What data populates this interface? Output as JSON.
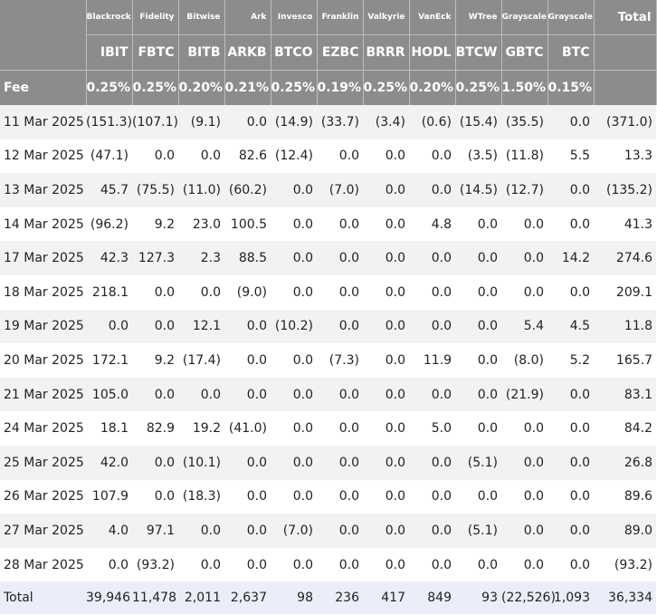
{
  "table": {
    "issuers": [
      "Blackrock",
      "Fidelity",
      "Bitwise",
      "Ark",
      "Invesco",
      "Franklin",
      "Valkyrie",
      "VanEck",
      "WTree",
      "Grayscale",
      "Grayscale"
    ],
    "total_header": "Total",
    "tickers": [
      "IBIT",
      "FBTC",
      "BITB",
      "ARKB",
      "BTCO",
      "EZBC",
      "BRRR",
      "HODL",
      "BTCW",
      "GBTC",
      "BTC"
    ],
    "fee_label": "Fee",
    "fees": [
      "0.25%",
      "0.25%",
      "0.20%",
      "0.21%",
      "0.25%",
      "0.19%",
      "0.25%",
      "0.20%",
      "0.25%",
      "1.50%",
      "0.15%"
    ],
    "rows": [
      {
        "date": "11 Mar 2025",
        "values": [
          "(151.3)",
          "(107.1)",
          "(9.1)",
          "0.0",
          "(14.9)",
          "(33.7)",
          "(3.4)",
          "(0.6)",
          "(15.4)",
          "(35.5)",
          "0.0"
        ],
        "total": "(371.0)"
      },
      {
        "date": "12 Mar 2025",
        "values": [
          "(47.1)",
          "0.0",
          "0.0",
          "82.6",
          "(12.4)",
          "0.0",
          "0.0",
          "0.0",
          "(3.5)",
          "(11.8)",
          "5.5"
        ],
        "total": "13.3"
      },
      {
        "date": "13 Mar 2025",
        "values": [
          "45.7",
          "(75.5)",
          "(11.0)",
          "(60.2)",
          "0.0",
          "(7.0)",
          "0.0",
          "0.0",
          "(14.5)",
          "(12.7)",
          "0.0"
        ],
        "total": "(135.2)"
      },
      {
        "date": "14 Mar 2025",
        "values": [
          "(96.2)",
          "9.2",
          "23.0",
          "100.5",
          "0.0",
          "0.0",
          "0.0",
          "4.8",
          "0.0",
          "0.0",
          "0.0"
        ],
        "total": "41.3"
      },
      {
        "date": "17 Mar 2025",
        "values": [
          "42.3",
          "127.3",
          "2.3",
          "88.5",
          "0.0",
          "0.0",
          "0.0",
          "0.0",
          "0.0",
          "0.0",
          "14.2"
        ],
        "total": "274.6"
      },
      {
        "date": "18 Mar 2025",
        "values": [
          "218.1",
          "0.0",
          "0.0",
          "(9.0)",
          "0.0",
          "0.0",
          "0.0",
          "0.0",
          "0.0",
          "0.0",
          "0.0"
        ],
        "total": "209.1"
      },
      {
        "date": "19 Mar 2025",
        "values": [
          "0.0",
          "0.0",
          "12.1",
          "0.0",
          "(10.2)",
          "0.0",
          "0.0",
          "0.0",
          "0.0",
          "5.4",
          "4.5"
        ],
        "total": "11.8"
      },
      {
        "date": "20 Mar 2025",
        "values": [
          "172.1",
          "9.2",
          "(17.4)",
          "0.0",
          "0.0",
          "(7.3)",
          "0.0",
          "11.9",
          "0.0",
          "(8.0)",
          "5.2"
        ],
        "total": "165.7"
      },
      {
        "date": "21 Mar 2025",
        "values": [
          "105.0",
          "0.0",
          "0.0",
          "0.0",
          "0.0",
          "0.0",
          "0.0",
          "0.0",
          "0.0",
          "(21.9)",
          "0.0"
        ],
        "total": "83.1"
      },
      {
        "date": "24 Mar 2025",
        "values": [
          "18.1",
          "82.9",
          "19.2",
          "(41.0)",
          "0.0",
          "0.0",
          "0.0",
          "5.0",
          "0.0",
          "0.0",
          "0.0"
        ],
        "total": "84.2"
      },
      {
        "date": "25 Mar 2025",
        "values": [
          "42.0",
          "0.0",
          "(10.1)",
          "0.0",
          "0.0",
          "0.0",
          "0.0",
          "0.0",
          "(5.1)",
          "0.0",
          "0.0"
        ],
        "total": "26.8"
      },
      {
        "date": "26 Mar 2025",
        "values": [
          "107.9",
          "0.0",
          "(18.3)",
          "0.0",
          "0.0",
          "0.0",
          "0.0",
          "0.0",
          "0.0",
          "0.0",
          "0.0"
        ],
        "total": "89.6"
      },
      {
        "date": "27 Mar 2025",
        "values": [
          "4.0",
          "97.1",
          "0.0",
          "0.0",
          "(7.0)",
          "0.0",
          "0.0",
          "0.0",
          "(5.1)",
          "0.0",
          "0.0"
        ],
        "total": "89.0"
      },
      {
        "date": "28 Mar 2025",
        "values": [
          "0.0",
          "(93.2)",
          "0.0",
          "0.0",
          "0.0",
          "0.0",
          "0.0",
          "0.0",
          "0.0",
          "0.0",
          "0.0"
        ],
        "total": "(93.2)"
      }
    ],
    "footer": {
      "label": "Total",
      "values": [
        "39,946",
        "11,478",
        "2,011",
        "2,637",
        "98",
        "236",
        "417",
        "849",
        "93",
        "(22,526)",
        "1,093"
      ],
      "total": "36,334"
    },
    "colors": {
      "header_bg": "#8c8c8c",
      "header_text": "#ffffff",
      "negative": "#e8322b",
      "stripe": "#f2f2f2",
      "footer_bg": "#e9eef9"
    }
  }
}
